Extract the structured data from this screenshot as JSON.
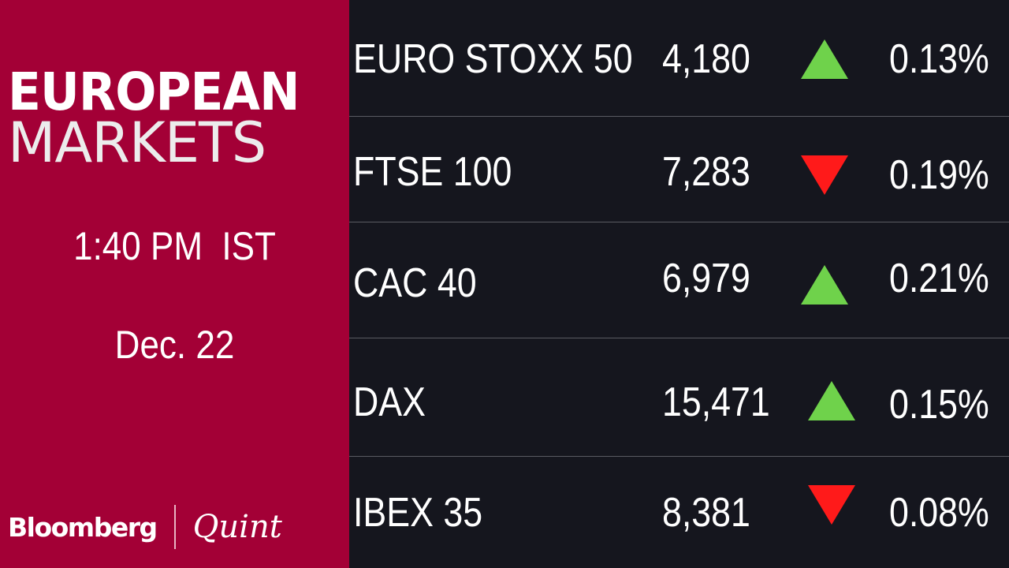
{
  "panel": {
    "title_line1": "EUROPEAN",
    "title_line2": "MARKETS",
    "time": "1:40 PM  IST",
    "date": "Dec. 22",
    "logo_left": "Bloomberg",
    "logo_right": "Quint"
  },
  "colors": {
    "panel_bg": "#a30036",
    "table_bg": "#15161e",
    "up": "#6fd24b",
    "down": "#ff1a1a"
  },
  "indices": [
    {
      "name": "EURO STOXX 50",
      "value": "4,180",
      "direction": "up",
      "change": "0.13%"
    },
    {
      "name": "FTSE 100",
      "value": "7,283",
      "direction": "down",
      "change": "0.19%"
    },
    {
      "name": "CAC 40",
      "value": "6,979",
      "direction": "up",
      "change": "0.21%"
    },
    {
      "name": "DAX",
      "value": "15,471",
      "direction": "up",
      "change": "0.15%"
    },
    {
      "name": "IBEX 35",
      "value": "8,381",
      "direction": "down",
      "change": "0.08%"
    }
  ]
}
